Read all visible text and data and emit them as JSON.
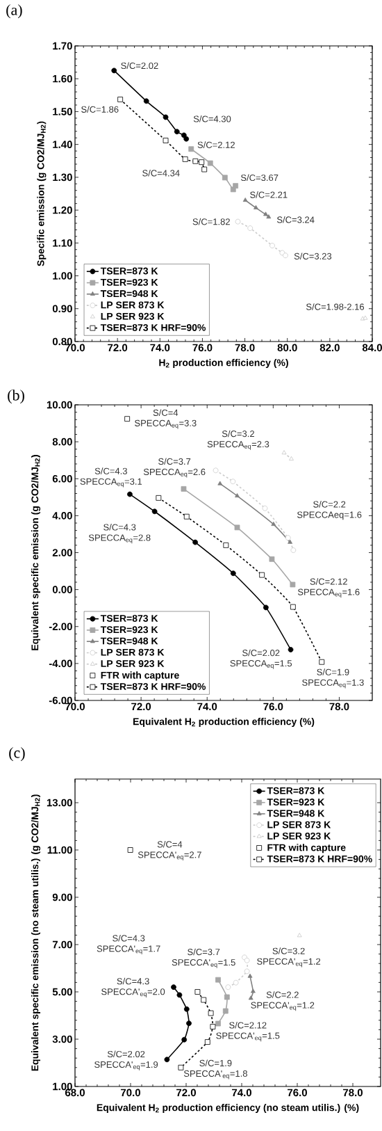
{
  "chart_data": [
    {
      "type": "line",
      "title": "(a)",
      "xlabel": "H$_{2}$ production efficiency (%)",
      "ylabel": "Specific emission (g CO2/MJ$_{H2}$)",
      "xlim": [
        70,
        84
      ],
      "ylim": [
        0.8,
        1.7
      ],
      "xticks": [
        {
          "value": 70,
          "label": "70.0"
        },
        {
          "value": 72,
          "label": "72.0"
        },
        {
          "value": 74,
          "label": "74.0"
        },
        {
          "value": 76,
          "label": "76.0"
        },
        {
          "value": 78,
          "label": "78.0"
        },
        {
          "value": 80,
          "label": "80.0"
        },
        {
          "value": 82,
          "label": "82.0"
        },
        {
          "value": 84,
          "label": "84.0"
        }
      ],
      "yticks": [
        {
          "value": 0.8,
          "label": "0.80"
        },
        {
          "value": 0.9,
          "label": "0.90"
        },
        {
          "value": 1.0,
          "label": "1.00"
        },
        {
          "value": 1.1,
          "label": "1.10"
        },
        {
          "value": 1.2,
          "label": "1.20"
        },
        {
          "value": 1.3,
          "label": "1.30"
        },
        {
          "value": 1.4,
          "label": "1.40"
        },
        {
          "value": 1.5,
          "label": "1.50"
        },
        {
          "value": 1.6,
          "label": "1.60"
        },
        {
          "value": 1.7,
          "label": "1.70"
        }
      ],
      "legend": "bottom left",
      "series": [
        {
          "name": "TSER=873 K",
          "type": "line",
          "color": "#000000",
          "marker": "circle",
          "line_style": "solid",
          "x": [
            71.84,
            73.36,
            74.27,
            74.8,
            75.13,
            75.24
          ],
          "values": [
            1.625,
            1.532,
            1.483,
            1.439,
            1.428,
            1.417
          ]
        },
        {
          "name": "TSER=923 K",
          "type": "line",
          "color": "#a6a6a6",
          "marker": "square",
          "line_style": "solid",
          "x": [
            75.47,
            76.37,
            77.06,
            77.45,
            77.56
          ],
          "values": [
            1.386,
            1.343,
            1.299,
            1.263,
            1.274
          ]
        },
        {
          "name": "TSER=948 K",
          "type": "line",
          "color": "#808080",
          "marker": "triangle",
          "line_style": "solid",
          "x": [
            78.02,
            78.52,
            78.98,
            79.12
          ],
          "values": [
            1.23,
            1.207,
            1.187,
            1.179
          ]
        },
        {
          "name": "LP SER 873 K",
          "type": "line",
          "color": "#cccccc",
          "marker": "circle",
          "line_style": "dashed",
          "x": [
            77.67,
            78.25,
            79.29,
            79.76,
            79.91
          ],
          "values": [
            1.165,
            1.145,
            1.092,
            1.07,
            1.062
          ]
        },
        {
          "name": "LP SER 923 K",
          "type": "scatter",
          "color": "#c8c8c8",
          "marker": "triangle",
          "x": [
            83.55,
            83.67
          ],
          "values": [
            0.869,
            0.871
          ]
        },
        {
          "name": "TSER=873 K HRF=90%",
          "type": "line",
          "color": "#000000",
          "marker": "square",
          "line_style": "dashed",
          "x": [
            72.13,
            74.27,
            75.19,
            75.67,
            75.96,
            76.09
          ],
          "values": [
            1.537,
            1.412,
            1.355,
            1.349,
            1.346,
            1.324
          ]
        }
      ],
      "annotations": [
        "S/C=2.02",
        "S/C=1.86",
        "S/C=4.30",
        "S/C=2.12",
        "S/C=4.34",
        "S/C=3.67",
        "S/C=2.21",
        "S/C=3.24",
        "S/C=1.82",
        "S/C=3.23",
        "S/C=1.98-2.16"
      ]
    },
    {
      "type": "line",
      "title": "(b)",
      "xlabel": "Equivalent H$_{2}$ production efficiency (%)",
      "ylabel": "Equivalent specific emission (g CO2/MJ$_{H2}$)",
      "xlim": [
        70,
        79
      ],
      "ylim": [
        -6,
        10
      ],
      "xticks": [
        {
          "value": 70,
          "label": "70.0"
        },
        {
          "value": 72,
          "label": "72.0"
        },
        {
          "value": 74,
          "label": "74.0"
        },
        {
          "value": 76,
          "label": "76.0"
        },
        {
          "value": 78,
          "label": "78.0"
        }
      ],
      "yticks": [
        {
          "value": -6,
          "label": "-6.00"
        },
        {
          "value": -4,
          "label": "-4.00"
        },
        {
          "value": -2,
          "label": "-2.00"
        },
        {
          "value": 0,
          "label": "0.00"
        },
        {
          "value": 2,
          "label": "2.00"
        },
        {
          "value": 4,
          "label": "4.00"
        },
        {
          "value": 6,
          "label": "6.00"
        },
        {
          "value": 8,
          "label": "8.00"
        },
        {
          "value": 10,
          "label": "10.00"
        }
      ],
      "legend": "bottom left",
      "series": [
        {
          "name": "TSER=873 K",
          "type": "line",
          "color": "#000000",
          "marker": "circle",
          "line_style": "solid",
          "x": [
            71.66,
            72.41,
            73.64,
            74.79,
            75.78,
            76.53
          ],
          "values": [
            5.16,
            4.23,
            2.56,
            0.88,
            -0.97,
            -3.25
          ]
        },
        {
          "name": "TSER=923 K",
          "type": "line",
          "color": "#a6a6a6",
          "marker": "square",
          "line_style": "solid",
          "x": [
            73.29,
            74.91,
            75.96,
            76.59
          ],
          "values": [
            5.45,
            3.36,
            1.65,
            0.27
          ]
        },
        {
          "name": "TSER=948 K",
          "type": "line",
          "color": "#808080",
          "marker": "triangle",
          "line_style": "solid",
          "x": [
            74.39,
            74.91,
            76.01,
            76.51
          ],
          "values": [
            5.73,
            5.07,
            3.53,
            2.56
          ]
        },
        {
          "name": "LP SER 873 K",
          "type": "line",
          "color": "#cccccc",
          "marker": "circle",
          "line_style": "dashed",
          "x": [
            74.26,
            74.78,
            75.75,
            76.45,
            76.61
          ],
          "values": [
            6.45,
            5.85,
            4.4,
            2.8,
            2.13
          ]
        },
        {
          "name": "LP SER 923 K",
          "type": "line",
          "color": "#c8c8c8",
          "marker": "triangle",
          "line_style": "dashed",
          "x": [
            76.33,
            76.55
          ],
          "values": [
            7.4,
            7.07
          ]
        },
        {
          "name": "FTR with capture",
          "type": "scatter",
          "color": "#000000",
          "marker": "square",
          "x": [
            71.58
          ],
          "values": [
            9.24
          ]
        },
        {
          "name": "TSER=873 K HRF=90%",
          "type": "line",
          "color": "#000000",
          "marker": "square",
          "line_style": "dashed",
          "x": [
            72.53,
            73.38,
            74.57,
            75.66,
            76.6,
            77.47
          ],
          "values": [
            4.96,
            3.95,
            2.4,
            0.79,
            -0.94,
            -3.92
          ]
        }
      ],
      "annotations": [
        "S/C=4 SPECCA$_{eq}$=3.3",
        "S/C=3.2 SPECCA$_{eq}$=2.3",
        "S/C=3.7 SPECCA$_{eq}$=2.6",
        "S/C=4.3 SPECCA$_{eq}$=3.1",
        "S/C=2.2 SPECCAeq=1.6",
        "S/C=4.3 SPECCA$_{eq}$=2.8",
        "S/C=2.12 SPECCA$_{eq}$=1.6",
        "S/C=2.02 SPECCA$_{eq}$=1.5",
        "S/C=1.9 SPECCA$_{eq}$=1.3"
      ]
    },
    {
      "type": "line",
      "title": "(c)",
      "xlabel": "Equivalent H$_{2}$ production efficiency (no steam utilis.) (%)",
      "ylabel": "Equivalent specific emission (no steam utilis.) (g CO2/MJ$_{H2}$)",
      "xlim": [
        68,
        79
      ],
      "ylim": [
        1,
        14
      ],
      "xticks": [
        {
          "value": 68,
          "label": "68.0"
        },
        {
          "value": 70,
          "label": "70.0"
        },
        {
          "value": 72,
          "label": "72.0"
        },
        {
          "value": 74,
          "label": "74.0"
        },
        {
          "value": 76,
          "label": "76.0"
        },
        {
          "value": 78,
          "label": "78.0"
        }
      ],
      "yticks": [
        {
          "value": 1,
          "label": "1.00"
        },
        {
          "value": 3,
          "label": "3.00"
        },
        {
          "value": 5,
          "label": "5.00"
        },
        {
          "value": 7,
          "label": "7.00"
        },
        {
          "value": 9,
          "label": "9.00"
        },
        {
          "value": 11,
          "label": "11.00"
        },
        {
          "value": 13,
          "label": "13.00"
        }
      ],
      "legend": "top right",
      "series": [
        {
          "name": "TSER=873 K",
          "type": "line",
          "color": "#000000",
          "marker": "circle",
          "line_style": "solid",
          "x": [
            71.55,
            71.76,
            72.02,
            72.1,
            71.93,
            71.31
          ],
          "values": [
            5.2,
            4.87,
            4.27,
            3.67,
            2.98,
            2.14
          ]
        },
        {
          "name": "TSER=923 K",
          "type": "line",
          "color": "#a6a6a6",
          "marker": "square",
          "line_style": "solid",
          "x": [
            73.15,
            73.47,
            73.42,
            73.15
          ],
          "values": [
            5.51,
            4.78,
            4.19,
            3.66
          ]
        },
        {
          "name": "TSER=948 K",
          "type": "line",
          "color": "#808080",
          "marker": "triangle",
          "line_style": "solid",
          "x": [
            74.3,
            74.41,
            74.33
          ],
          "values": [
            5.66,
            5.02,
            4.73
          ]
        },
        {
          "name": "LP SER 873 K",
          "type": "line",
          "color": "#cccccc",
          "marker": "circle",
          "line_style": "dashed",
          "x": [
            74.1,
            74.19,
            74.19,
            73.79,
            73.51
          ],
          "values": [
            6.46,
            6.33,
            5.87,
            5.39,
            5.2
          ]
        },
        {
          "name": "LP SER 923 K",
          "type": "line",
          "color": "#c8c8c8",
          "marker": "triangle",
          "line_style": "dashed",
          "x": [
            76.08
          ],
          "values": [
            7.38
          ]
        },
        {
          "name": "FTR with capture",
          "type": "scatter",
          "color": "#000000",
          "marker": "square",
          "x": [
            69.99
          ],
          "values": [
            11.0
          ]
        },
        {
          "name": "TSER=873 K HRF=90%",
          "type": "line",
          "color": "#000000",
          "marker": "square",
          "line_style": "dashed",
          "x": [
            72.41,
            72.63,
            72.89,
            72.96,
            72.77,
            71.81
          ],
          "values": [
            5.0,
            4.66,
            4.1,
            3.53,
            2.88,
            1.8
          ]
        }
      ],
      "annotations": [
        "S/C=4 SPECCA'$_{eq}$=2.7",
        "S/C=4.3 SPECCA'$_{eq}$=1.7",
        "S/C=3.7 SPECCA'$_{eq}$=1.5",
        "S/C=3.2 SPECCA'$_{eq}$=1.2",
        "S/C=4.3 SPECCA'$_{eq}$=2.0",
        "S/C=2.2 SPECCA'$_{eq}$=1.2",
        "S/C=2.12 SPECCA'$_{eq}$=1.5",
        "S/C=2.02 SPECCA'$_{eq}$=1.9",
        "S/C=1.9 SPECCA'$_{eq}$=1.8"
      ]
    }
  ]
}
